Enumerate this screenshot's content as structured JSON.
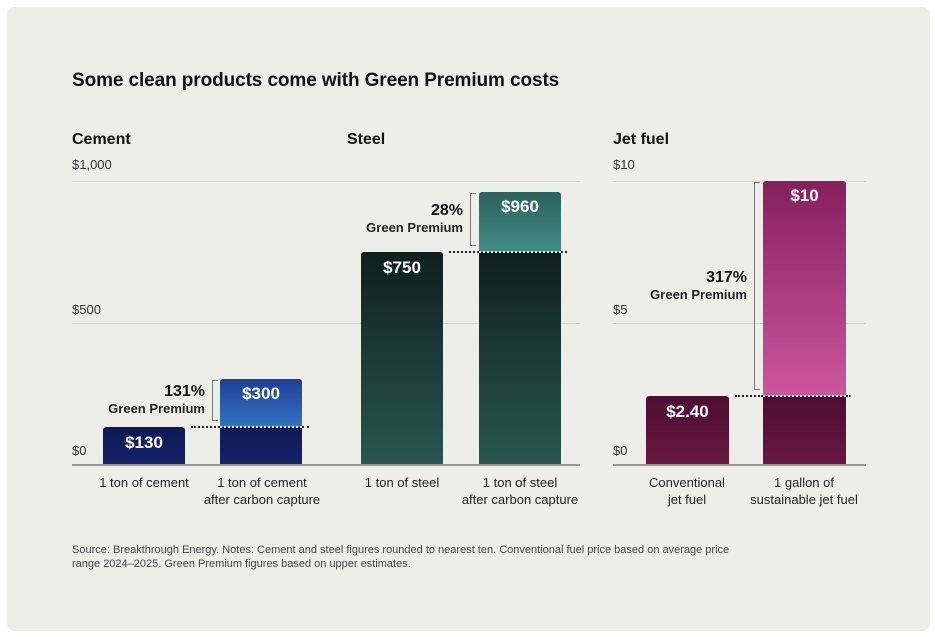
{
  "title": "Some clean products come with Green Premium costs",
  "source_note": "Source: Breakthrough Energy. Notes: Cement and steel figures rounded to nearest ten. Conventional fuel price based on average price range 2024–2025. Green Premium figures based on upper estimates.",
  "chart_data": [
    {
      "type": "bar",
      "title": "Cement",
      "ylabel": "",
      "ylim": [
        0,
        1000
      ],
      "yticks": [
        {
          "value": 0,
          "label": "$0"
        },
        {
          "value": 500,
          "label": "$500"
        },
        {
          "value": 1000,
          "label": "$1,000"
        }
      ],
      "categories": [
        "1 ton of cement",
        "1 ton of cement after carbon capture"
      ],
      "values": [
        130,
        300
      ],
      "value_labels": [
        "$130",
        "$300"
      ],
      "green_premium": {
        "percent": "131%",
        "label": "Green Premium"
      },
      "colors": {
        "base_top": "#0f1a52",
        "base_bottom": "#15216c",
        "premium_top": "#1f3f94",
        "premium_bottom": "#3373c4"
      }
    },
    {
      "type": "bar",
      "title": "Steel",
      "ylim": [
        0,
        1000
      ],
      "categories": [
        "1 ton of steel",
        "1 ton of steel after carbon capture"
      ],
      "values": [
        750,
        960
      ],
      "value_labels": [
        "$750",
        "$960"
      ],
      "green_premium": {
        "percent": "28%",
        "label": "Green Premium"
      },
      "colors": {
        "base_top": "#0f1f1e",
        "base_bottom": "#285650",
        "premium_top": "#2c625d",
        "premium_bottom": "#428d87"
      }
    },
    {
      "type": "bar",
      "title": "Jet fuel",
      "ylim": [
        0,
        10
      ],
      "yticks": [
        {
          "value": 0,
          "label": "$0"
        },
        {
          "value": 5,
          "label": "$5"
        },
        {
          "value": 10,
          "label": "$10"
        }
      ],
      "categories": [
        "Conventional jet fuel",
        "1 gallon of sustainable jet fuel"
      ],
      "values": [
        2.4,
        10
      ],
      "value_labels": [
        "$2.40",
        "$10"
      ],
      "green_premium": {
        "percent": "317%",
        "label": "Green Premium"
      },
      "colors": {
        "base_top": "#4c0e32",
        "base_bottom": "#691742",
        "premium_top": "#86205d",
        "premium_bottom": "#cc569f"
      }
    }
  ]
}
